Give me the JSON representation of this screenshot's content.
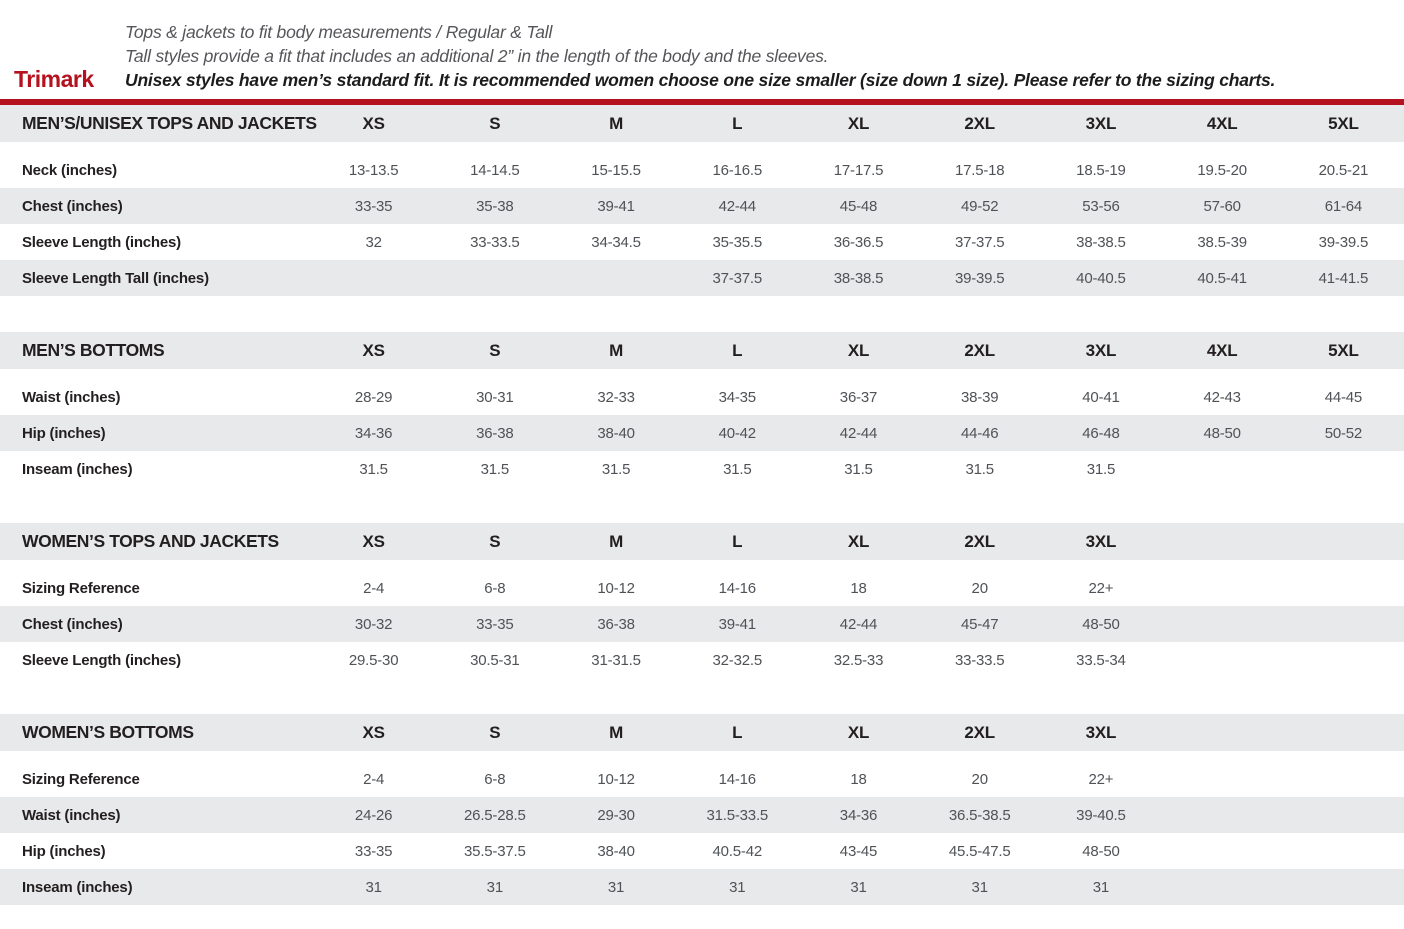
{
  "brand": "Trimark",
  "intro": {
    "line1": "Tops & jackets to fit body measurements / Regular & Tall",
    "line2": "Tall styles provide a fit that includes an additional 2” in the length of the body and the sleeves.",
    "line3": "Unisex styles have men’s standard fit. It is recommended women choose one size smaller (size down 1 size).  Please refer to the sizing charts."
  },
  "colors": {
    "accent_red": "#b5121f",
    "row_gray": "#e8e9ea",
    "label_text": "#231f20",
    "value_text": "#4f5256"
  },
  "column_slots": 9,
  "tables": [
    {
      "title": "MEN’S/UNISEX TOPS AND JACKETS",
      "sizes": [
        "XS",
        "S",
        "M",
        "L",
        "XL",
        "2XL",
        "3XL",
        "4XL",
        "5XL"
      ],
      "rows": [
        {
          "label": "Neck (inches)",
          "values": [
            "13-13.5",
            "14-14.5",
            "15-15.5",
            "16-16.5",
            "17-17.5",
            "17.5-18",
            "18.5-19",
            "19.5-20",
            "20.5-21"
          ]
        },
        {
          "label": "Chest (inches)",
          "values": [
            "33-35",
            "35-38",
            "39-41",
            "42-44",
            "45-48",
            "49-52",
            "53-56",
            "57-60",
            "61-64"
          ]
        },
        {
          "label": "Sleeve Length (inches)",
          "values": [
            "32",
            "33-33.5",
            "34-34.5",
            "35-35.5",
            "36-36.5",
            "37-37.5",
            "38-38.5",
            "38.5-39",
            "39-39.5"
          ]
        },
        {
          "label": "Sleeve Length Tall (inches)",
          "values": [
            "",
            "",
            "",
            "37-37.5",
            "38-38.5",
            "39-39.5",
            "40-40.5",
            "40.5-41",
            "41-41.5"
          ]
        }
      ]
    },
    {
      "title": "MEN’S BOTTOMS",
      "sizes": [
        "XS",
        "S",
        "M",
        "L",
        "XL",
        "2XL",
        "3XL",
        "4XL",
        "5XL"
      ],
      "rows": [
        {
          "label": "Waist (inches)",
          "values": [
            "28-29",
            "30-31",
            "32-33",
            "34-35",
            "36-37",
            "38-39",
            "40-41",
            "42-43",
            "44-45"
          ]
        },
        {
          "label": "Hip (inches)",
          "values": [
            "34-36",
            "36-38",
            "38-40",
            "40-42",
            "42-44",
            "44-46",
            "46-48",
            "48-50",
            "50-52"
          ]
        },
        {
          "label": "Inseam (inches)",
          "values": [
            "31.5",
            "31.5",
            "31.5",
            "31.5",
            "31.5",
            "31.5",
            "31.5",
            "",
            ""
          ]
        }
      ]
    },
    {
      "title": "WOMEN’S TOPS AND JACKETS",
      "sizes": [
        "XS",
        "S",
        "M",
        "L",
        "XL",
        "2XL",
        "3XL"
      ],
      "rows": [
        {
          "label": "Sizing Reference",
          "values": [
            "2-4",
            "6-8",
            "10-12",
            "14-16",
            "18",
            "20",
            "22+"
          ]
        },
        {
          "label": "Chest (inches)",
          "values": [
            "30-32",
            "33-35",
            "36-38",
            "39-41",
            "42-44",
            "45-47",
            "48-50"
          ]
        },
        {
          "label": "Sleeve Length (inches)",
          "values": [
            "29.5-30",
            "30.5-31",
            "31-31.5",
            "32-32.5",
            "32.5-33",
            "33-33.5",
            "33.5-34"
          ]
        }
      ]
    },
    {
      "title": "WOMEN’S BOTTOMS",
      "sizes": [
        "XS",
        "S",
        "M",
        "L",
        "XL",
        "2XL",
        "3XL"
      ],
      "rows": [
        {
          "label": "Sizing Reference",
          "values": [
            "2-4",
            "6-8",
            "10-12",
            "14-16",
            "18",
            "20",
            "22+"
          ]
        },
        {
          "label": "Waist (inches)",
          "values": [
            "24-26",
            "26.5-28.5",
            "29-30",
            "31.5-33.5",
            "34-36",
            "36.5-38.5",
            "39-40.5"
          ]
        },
        {
          "label": "Hip (inches)",
          "values": [
            "33-35",
            "35.5-37.5",
            "38-40",
            "40.5-42",
            "43-45",
            "45.5-47.5",
            "48-50"
          ]
        },
        {
          "label": "Inseam (inches)",
          "values": [
            "31",
            "31",
            "31",
            "31",
            "31",
            "31",
            "31"
          ]
        }
      ]
    }
  ]
}
